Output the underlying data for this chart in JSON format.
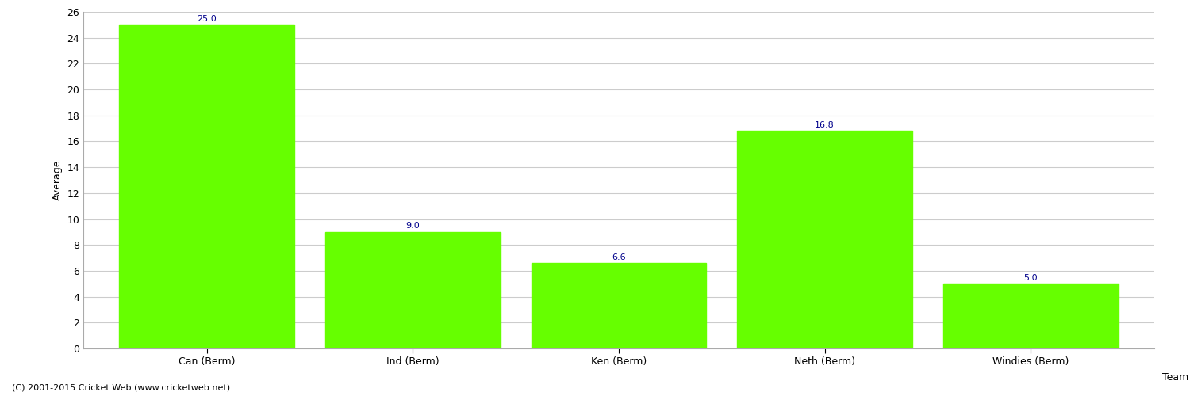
{
  "categories": [
    "Can (Berm)",
    "Ind (Berm)",
    "Ken (Berm)",
    "Neth (Berm)",
    "Windies (Berm)"
  ],
  "values": [
    25.0,
    9.0,
    6.6,
    16.8,
    5.0
  ],
  "bar_color": "#66ff00",
  "bar_edge_color": "#66ff00",
  "value_label_color": "#00008b",
  "value_label_fontsize": 8,
  "xlabel": "Team",
  "ylabel": "Average",
  "ylim": [
    0,
    26
  ],
  "yticks": [
    0,
    2,
    4,
    6,
    8,
    10,
    12,
    14,
    16,
    18,
    20,
    22,
    24,
    26
  ],
  "grid_color": "#cccccc",
  "background_color": "#ffffff",
  "footer_text": "(C) 2001-2015 Cricket Web (www.cricketweb.net)",
  "footer_fontsize": 8,
  "footer_color": "black",
  "axis_label_fontsize": 9,
  "tick_fontsize": 9,
  "bar_width": 0.85
}
